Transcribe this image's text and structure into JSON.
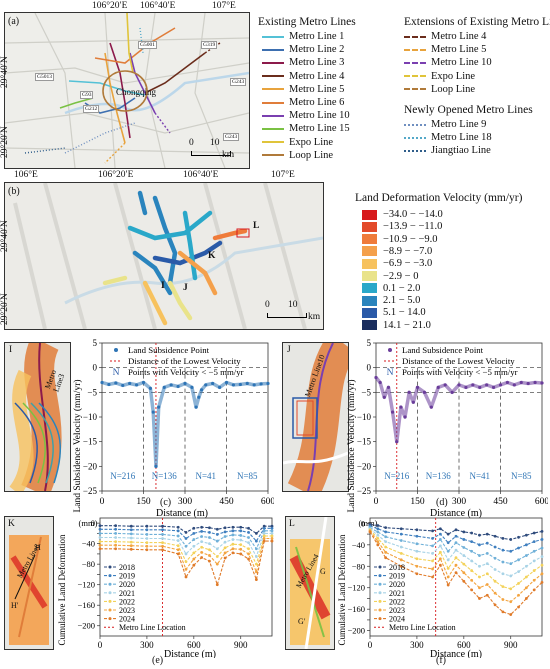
{
  "panel_a": {
    "label": "(a)",
    "top_ticks": [
      "106°20′E",
      "106°40′E",
      "107°E"
    ],
    "left_ticks": [
      "29°40′N",
      "29°20′N"
    ],
    "city": "Chongqing",
    "road_labels": [
      "G5001",
      "G319",
      "G5013",
      "G93",
      "G212",
      "G243",
      "G243"
    ],
    "scale": {
      "values": [
        "0",
        "10"
      ],
      "unit": "km"
    },
    "legend": {
      "existing_title": "Existing Metro Lines",
      "existing": [
        {
          "name": "Metro Line 1",
          "color": "#54c1d6"
        },
        {
          "name": "Metro Line 2",
          "color": "#3d6fb0"
        },
        {
          "name": "Metro Line 3",
          "color": "#8c1a4b"
        },
        {
          "name": "Metro Line 4",
          "color": "#6b2d1c"
        },
        {
          "name": "Metro Line 5",
          "color": "#e8a33d"
        },
        {
          "name": "Metro Line 6",
          "color": "#e07d3a"
        },
        {
          "name": "Metro Line 10",
          "color": "#7a3fb0"
        },
        {
          "name": "Metro Line 15",
          "color": "#7ac143"
        },
        {
          "name": "Expo Line",
          "color": "#e0c43a"
        },
        {
          "name": "Loop Line",
          "color": "#b07a3a"
        }
      ],
      "ext_title": "Extensions of Existing Metro Lines",
      "ext": [
        {
          "name": "Metro Line 4",
          "color": "#6b2d1c"
        },
        {
          "name": "Metro Line 5",
          "color": "#e8a33d"
        },
        {
          "name": "Metro Line 10",
          "color": "#7a3fb0"
        },
        {
          "name": "Expo Line",
          "color": "#e0c43a"
        },
        {
          "name": "Loop Line",
          "color": "#b07a3a"
        }
      ],
      "new_title": "Newly Opened Metro Lines",
      "new": [
        {
          "name": "Metro Line 9",
          "color": "#6f8fc0"
        },
        {
          "name": "Metro Line 18",
          "color": "#54a8c8"
        },
        {
          "name": "Jiangtiao Line",
          "color": "#2f5d8a"
        }
      ]
    }
  },
  "panel_b": {
    "label": "(b)",
    "top_ticks": [
      "106°E",
      "106°20′E",
      "106°40′E",
      "107°E"
    ],
    "left_ticks": [
      "29°40′N",
      "29°20′N"
    ],
    "markers": [
      "L",
      "K",
      "I",
      "J"
    ],
    "scale": {
      "values": [
        "0",
        "10"
      ],
      "unit": "km"
    },
    "legend_title": "Land Deformation Velocity (mm/yr)",
    "classes": [
      {
        "range": "−34.0 − −14.0",
        "color": "#d7191c"
      },
      {
        "range": "−13.9 − −11.0",
        "color": "#e34a2a"
      },
      {
        "range": "−10.9 − −9.0",
        "color": "#ef7b3a"
      },
      {
        "range": "−8.9 − −7.0",
        "color": "#f4a04b"
      },
      {
        "range": "−6.9 − −3.0",
        "color": "#f7c25e"
      },
      {
        "range": "−2.9 − 0",
        "color": "#e9e38a"
      },
      {
        "range": "0.1 − 2.0",
        "color": "#2aa8c9"
      },
      {
        "range": "2.1 − 5.0",
        "color": "#2a84bd"
      },
      {
        "range": "5.1 − 14.0",
        "color": "#2a5aa8"
      },
      {
        "range": "14.1 − 21.0",
        "color": "#1a2d5e"
      }
    ]
  },
  "panel_c": {
    "sub_label": "(c)",
    "inset_label": "I",
    "line_label": "Metro Line3",
    "ylabel": "Land Subsidence Velocity (mm/yr)",
    "xlabel": "Distance (m)",
    "legend": [
      "Land Subsidence Point",
      "Distance of the Lowest Velocity",
      "Points with Velocity < −5 mm/yr"
    ],
    "legend_N": "N",
    "counts": [
      "N=216",
      "N=136",
      "N=41",
      "N=85"
    ]
  },
  "panel_d": {
    "sub_label": "(d)",
    "inset_label": "J",
    "line_label": "Metro Line10",
    "ylabel": "Land Subsidence Velocity (mm/yr)",
    "xlabel": "Distance (m)",
    "legend": [
      "Land Subsidence Point",
      "Distance of the Lowest Velocity",
      "Points with Velocity < −5 mm/yr"
    ],
    "legend_N": "N",
    "counts": [
      "N=216",
      "N=136",
      "N=41",
      "N=85"
    ]
  },
  "panel_e": {
    "sub_label": "(e)",
    "inset_label": "K",
    "line_label": "Metro Line6",
    "h_label": "H",
    "h2_label": "H′",
    "ylabel": "Cumulative Land Deformation",
    "unit": "(mm)",
    "xlabel": "Distance (m)",
    "years": [
      "2018",
      "2019",
      "2020",
      "2021",
      "2022",
      "2023",
      "2024"
    ],
    "metro_legend": "Metro Line Location"
  },
  "panel_f": {
    "sub_label": "(f)",
    "inset_label": "L",
    "line_label": "Metro Line4",
    "g_label": "G",
    "g2_label": "G′",
    "ylabel": "Cumulative Land Deformation",
    "unit": "(mm)",
    "xlabel": "Distance (m)",
    "years": [
      "2018",
      "2019",
      "2020",
      "2021",
      "2022",
      "2023",
      "2024"
    ],
    "metro_legend": "Metro Line Location"
  },
  "chart_data": [
    {
      "type": "scatter",
      "panel": "c",
      "xlabel": "Distance (m)",
      "ylabel": "Land Subsidence Velocity (mm/yr)",
      "xlim": [
        0,
        600
      ],
      "ylim": [
        -25,
        5
      ],
      "xticks": [
        0,
        150,
        300,
        450,
        600
      ],
      "yticks": [
        5,
        0,
        -5,
        -10,
        -15,
        -20,
        -25
      ],
      "lowest_velocity_distance": 195,
      "threshold": -5,
      "segment_bounds": [
        150,
        300,
        450
      ],
      "segment_counts": [
        216,
        136,
        41,
        85
      ],
      "series": [
        {
          "name": "Land Subsidence Point",
          "color": "#2e74b5",
          "x": [
            0,
            25,
            50,
            75,
            100,
            125,
            150,
            175,
            185,
            195,
            205,
            225,
            250,
            275,
            300,
            325,
            340,
            350,
            360,
            375,
            400,
            425,
            450,
            475,
            500,
            525,
            550,
            575,
            600
          ],
          "y": [
            -3,
            -3.4,
            -3.1,
            -3.6,
            -3.2,
            -3.5,
            -3,
            -4.2,
            -9,
            -20,
            -8,
            -4,
            -3.5,
            -3.8,
            -3.2,
            -4,
            -8,
            -6,
            -4.5,
            -3.5,
            -3.2,
            -4,
            -3,
            -3.5,
            -3.4,
            -3.2,
            -3.5,
            -3.3,
            -3.2
          ]
        }
      ]
    },
    {
      "type": "scatter",
      "panel": "d",
      "xlabel": "Distance (m)",
      "ylabel": "Land Subsidence Velocity (mm/yr)",
      "xlim": [
        0,
        600
      ],
      "ylim": [
        -25,
        5
      ],
      "xticks": [
        0,
        150,
        300,
        450,
        600
      ],
      "yticks": [
        5,
        0,
        -5,
        -10,
        -15,
        -20,
        -25
      ],
      "lowest_velocity_distance": 75,
      "threshold": -5,
      "segment_bounds": [
        150,
        300,
        450
      ],
      "segment_counts": [
        216,
        136,
        41,
        85
      ],
      "series": [
        {
          "name": "Land Subsidence Point",
          "color": "#6a3d9a",
          "x": [
            0,
            15,
            30,
            45,
            60,
            75,
            90,
            105,
            120,
            135,
            150,
            175,
            200,
            225,
            250,
            275,
            300,
            325,
            350,
            375,
            400,
            425,
            450,
            475,
            500,
            525,
            550,
            575,
            600
          ],
          "y": [
            -2,
            -3,
            -6,
            -4,
            -9,
            -15,
            -8,
            -10,
            -5,
            -7,
            -4,
            -5,
            -8,
            -4,
            -3.5,
            -5,
            -3.5,
            -4,
            -3.5,
            -4,
            -3.5,
            -4,
            -3.5,
            -3,
            -3.5,
            -3,
            -3.2,
            -3,
            -3.1
          ]
        }
      ]
    },
    {
      "type": "line",
      "panel": "e",
      "xlabel": "Distance (m)",
      "ylabel": "Cumulative Land Deformation (mm)",
      "xlim": [
        0,
        1100
      ],
      "ylim": [
        -220,
        10
      ],
      "xticks": [
        0,
        300,
        600,
        900
      ],
      "yticks": [
        0,
        -20,
        -40,
        -60,
        -80,
        -100,
        -120,
        -140,
        -160,
        -180,
        -200
      ],
      "metro_line_location": 400,
      "x": [
        0,
        100,
        200,
        300,
        400,
        500,
        550,
        600,
        650,
        700,
        750,
        800,
        850,
        900,
        950,
        1000,
        1050,
        1100
      ],
      "series": [
        {
          "name": "2018",
          "color": "#2f4b7c",
          "values": [
            -5,
            -5,
            -6,
            -6,
            -6,
            -8,
            -18,
            -10,
            -8,
            -9,
            -12,
            -9,
            -8,
            -8,
            -10,
            -20,
            -6,
            -6
          ]
        },
        {
          "name": "2019",
          "color": "#3f7fbf",
          "values": [
            -12,
            -12,
            -13,
            -13,
            -13,
            -15,
            -30,
            -20,
            -16,
            -18,
            -22,
            -17,
            -15,
            -15,
            -18,
            -35,
            -10,
            -10
          ]
        },
        {
          "name": "2020",
          "color": "#6fb0d8",
          "values": [
            -20,
            -20,
            -21,
            -22,
            -22,
            -25,
            -45,
            -32,
            -26,
            -28,
            -35,
            -26,
            -23,
            -24,
            -28,
            -50,
            -15,
            -15
          ]
        },
        {
          "name": "2021",
          "color": "#a8d3e6",
          "values": [
            -28,
            -28,
            -29,
            -30,
            -30,
            -34,
            -60,
            -45,
            -36,
            -40,
            -50,
            -37,
            -32,
            -33,
            -38,
            -65,
            -20,
            -20
          ]
        },
        {
          "name": "2022",
          "color": "#f3d25a",
          "values": [
            -36,
            -36,
            -37,
            -38,
            -38,
            -44,
            -75,
            -58,
            -47,
            -52,
            -65,
            -48,
            -41,
            -42,
            -50,
            -80,
            -25,
            -25
          ]
        },
        {
          "name": "2023",
          "color": "#f3a440",
          "values": [
            -43,
            -43,
            -44,
            -45,
            -45,
            -52,
            -90,
            -70,
            -57,
            -63,
            -80,
            -58,
            -50,
            -51,
            -60,
            -95,
            -30,
            -30
          ]
        },
        {
          "name": "2024",
          "color": "#e07b2a",
          "values": [
            -50,
            -50,
            -51,
            -52,
            -52,
            -60,
            -105,
            -82,
            -67,
            -74,
            -120,
            -68,
            -58,
            -60,
            -70,
            -110,
            -35,
            -35
          ]
        }
      ]
    },
    {
      "type": "line",
      "panel": "f",
      "xlabel": "Distance (m)",
      "ylabel": "Cumulative Land Deformation (mm)",
      "xlim": [
        0,
        1100
      ],
      "ylim": [
        -210,
        10
      ],
      "xticks": [
        0,
        300,
        600,
        900
      ],
      "yticks": [
        0,
        -20,
        -40,
        -60,
        -80,
        -100,
        -120,
        -140,
        -160,
        -180,
        -200
      ],
      "metro_line_location": 420,
      "x": [
        0,
        50,
        100,
        200,
        300,
        400,
        450,
        500,
        550,
        600,
        650,
        700,
        750,
        800,
        850,
        900,
        950,
        1000,
        1050,
        1100
      ],
      "series": [
        {
          "name": "2018",
          "color": "#2f4b7c",
          "values": [
            -2,
            -4,
            -8,
            -10,
            -12,
            -14,
            -10,
            -20,
            -12,
            -16,
            -18,
            -22,
            -20,
            -24,
            -28,
            -30,
            -26,
            -22,
            -18,
            -15
          ]
        },
        {
          "name": "2019",
          "color": "#3f7fbf",
          "values": [
            -5,
            -10,
            -16,
            -20,
            -24,
            -28,
            -20,
            -36,
            -24,
            -30,
            -34,
            -40,
            -37,
            -44,
            -50,
            -52,
            -46,
            -40,
            -34,
            -30
          ]
        },
        {
          "name": "2020",
          "color": "#6fb0d8",
          "values": [
            -8,
            -16,
            -25,
            -32,
            -38,
            -42,
            -30,
            -52,
            -36,
            -45,
            -52,
            -60,
            -56,
            -65,
            -72,
            -75,
            -68,
            -60,
            -52,
            -46
          ]
        },
        {
          "name": "2021",
          "color": "#a8d3e6",
          "values": [
            -10,
            -22,
            -34,
            -44,
            -52,
            -56,
            -42,
            -68,
            -50,
            -60,
            -70,
            -80,
            -75,
            -86,
            -94,
            -98,
            -90,
            -80,
            -70,
            -62
          ]
        },
        {
          "name": "2022",
          "color": "#f3d25a",
          "values": [
            -12,
            -28,
            -44,
            -56,
            -66,
            -70,
            -54,
            -84,
            -64,
            -76,
            -88,
            -100,
            -94,
            -108,
            -118,
            -122,
            -112,
            -100,
            -88,
            -78
          ]
        },
        {
          "name": "2023",
          "color": "#f3a440",
          "values": [
            -14,
            -34,
            -54,
            -68,
            -80,
            -85,
            -66,
            -100,
            -78,
            -92,
            -106,
            -120,
            -114,
            -130,
            -142,
            -146,
            -134,
            -120,
            -106,
            -94
          ]
        },
        {
          "name": "2024",
          "color": "#e07b2a",
          "values": [
            -16,
            -40,
            -64,
            -80,
            -94,
            -100,
            -78,
            -115,
            -92,
            -108,
            -124,
            -140,
            -134,
            -152,
            -165,
            -170,
            -156,
            -140,
            -124,
            -110
          ]
        }
      ]
    }
  ]
}
